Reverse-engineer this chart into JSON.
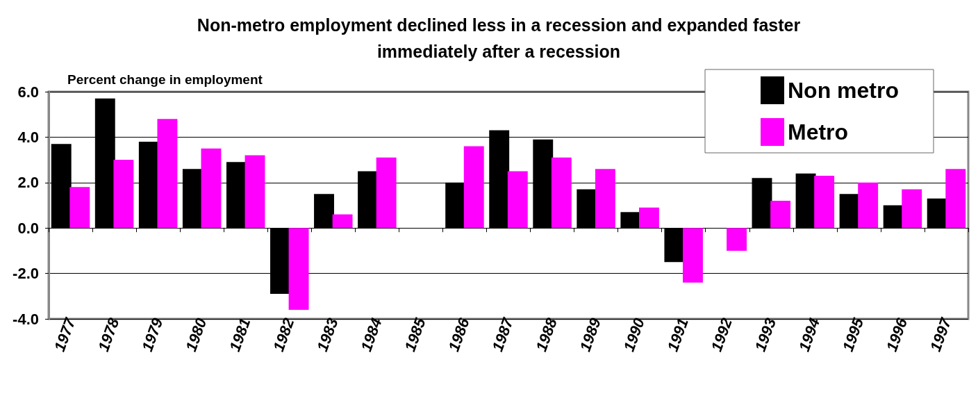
{
  "chart_data": {
    "type": "bar",
    "title": "Non-metro employment declined less in a recession and expanded faster\nimmediately after a recession",
    "ylabel": "Percent change in employment",
    "categories": [
      "1977",
      "1978",
      "1979",
      "1980",
      "1981",
      "1982",
      "1983",
      "1984",
      "1985",
      "1986",
      "1987",
      "1988",
      "1989",
      "1990",
      "1991",
      "1992",
      "1993",
      "1994",
      "1995",
      "1996",
      "1997"
    ],
    "series": [
      {
        "name": "Non metro",
        "color": "#000000",
        "values": [
          3.7,
          5.7,
          3.8,
          2.6,
          2.9,
          -2.9,
          1.5,
          2.5,
          null,
          2.0,
          4.3,
          3.9,
          1.7,
          0.7,
          -1.5,
          0.0,
          2.2,
          2.4,
          1.5,
          1.0,
          1.3
        ]
      },
      {
        "name": "Metro",
        "color": "#ff00ff",
        "values": [
          1.8,
          3.0,
          4.8,
          3.5,
          3.2,
          -3.6,
          0.6,
          3.1,
          null,
          3.6,
          2.5,
          3.1,
          2.6,
          0.9,
          -2.4,
          -1.0,
          1.2,
          2.3,
          2.0,
          1.7,
          2.6
        ]
      }
    ],
    "ylim": [
      -4,
      6
    ],
    "yticks": [
      {
        "value": -4,
        "label": "-4.0"
      },
      {
        "value": -2,
        "label": "-2.0"
      },
      {
        "value": 0,
        "label": "0.0"
      },
      {
        "value": 2,
        "label": "2.0"
      },
      {
        "value": 4,
        "label": "4.0"
      },
      {
        "value": 6,
        "label": "6.0"
      }
    ],
    "grid": "y",
    "legend": "top right"
  }
}
